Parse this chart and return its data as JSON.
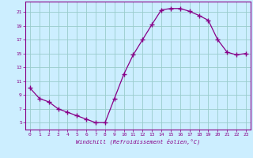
{
  "x_data": [
    0,
    1,
    2,
    3,
    4,
    5,
    6,
    7,
    8,
    9,
    10,
    11,
    12,
    13,
    14,
    15,
    16,
    17,
    18,
    19,
    20,
    21,
    22,
    23
  ],
  "y_data": [
    10.0,
    8.5,
    8.0,
    7.0,
    6.5,
    6.0,
    5.5,
    5.0,
    5.0,
    8.5,
    12.0,
    14.8,
    17.0,
    19.2,
    21.3,
    21.5,
    21.5,
    21.1,
    20.5,
    19.8,
    17.0,
    15.2,
    14.8,
    15.0
  ],
  "line_color": "#880088",
  "bg_color": "#cceeff",
  "grid_color": "#99cccc",
  "xlabel": "Windchill (Refroidissement éolien,°C)",
  "ylim": [
    4.0,
    22.5
  ],
  "xlim": [
    -0.5,
    23.5
  ],
  "yticks": [
    5,
    7,
    9,
    11,
    13,
    15,
    17,
    19,
    21
  ],
  "xticks": [
    0,
    1,
    2,
    3,
    4,
    5,
    6,
    7,
    8,
    9,
    10,
    11,
    12,
    13,
    14,
    15,
    16,
    17,
    18,
    19,
    20,
    21,
    22,
    23
  ]
}
